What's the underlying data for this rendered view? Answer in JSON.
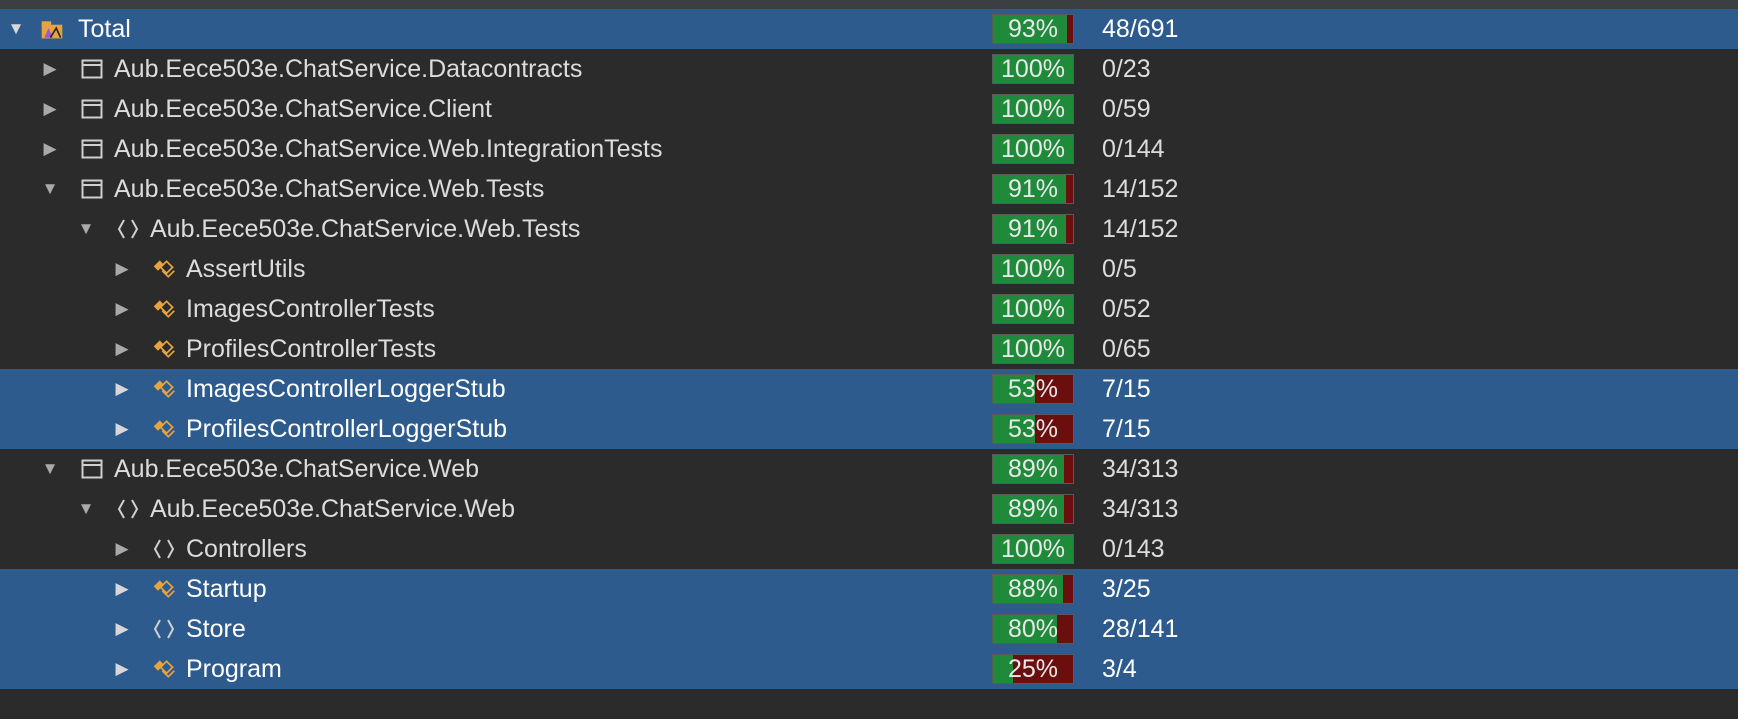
{
  "rows": [
    {
      "label": "Total",
      "arrow": "expanded",
      "icon": "total-icon",
      "pct_label": "93%",
      "fraction": 0.93,
      "count": "48/691",
      "level": 0,
      "selected": true
    },
    {
      "label": "Aub.Eece503e.ChatService.Datacontracts",
      "arrow": "collapsed",
      "icon": "assembly-icon",
      "pct_label": "100%",
      "fraction": 1.0,
      "count": "0/23",
      "level": 1,
      "selected": false
    },
    {
      "label": "Aub.Eece503e.ChatService.Client",
      "arrow": "collapsed",
      "icon": "assembly-icon",
      "pct_label": "100%",
      "fraction": 1.0,
      "count": "0/59",
      "level": 1,
      "selected": false
    },
    {
      "label": "Aub.Eece503e.ChatService.Web.IntegrationTests",
      "arrow": "collapsed",
      "icon": "assembly-icon",
      "pct_label": "100%",
      "fraction": 1.0,
      "count": "0/144",
      "level": 1,
      "selected": false
    },
    {
      "label": "Aub.Eece503e.ChatService.Web.Tests",
      "arrow": "expanded",
      "icon": "assembly-icon",
      "pct_label": "91%",
      "fraction": 0.91,
      "count": "14/152",
      "level": 1,
      "selected": false
    },
    {
      "label": "Aub.Eece503e.ChatService.Web.Tests",
      "arrow": "expanded",
      "icon": "namespace-icon",
      "pct_label": "91%",
      "fraction": 0.91,
      "count": "14/152",
      "level": 2,
      "selected": false
    },
    {
      "label": "AssertUtils",
      "arrow": "collapsed",
      "icon": "class-icon",
      "pct_label": "100%",
      "fraction": 1.0,
      "count": "0/5",
      "level": 3,
      "selected": false
    },
    {
      "label": "ImagesControllerTests",
      "arrow": "collapsed",
      "icon": "class-icon",
      "pct_label": "100%",
      "fraction": 1.0,
      "count": "0/52",
      "level": 3,
      "selected": false
    },
    {
      "label": "ProfilesControllerTests",
      "arrow": "collapsed",
      "icon": "class-icon",
      "pct_label": "100%",
      "fraction": 1.0,
      "count": "0/65",
      "level": 3,
      "selected": false
    },
    {
      "label": "ImagesControllerLoggerStub",
      "arrow": "collapsed",
      "icon": "class-icon",
      "pct_label": "53%",
      "fraction": 0.53,
      "count": "7/15",
      "level": 3,
      "selected": true
    },
    {
      "label": "ProfilesControllerLoggerStub",
      "arrow": "collapsed",
      "icon": "class-icon",
      "pct_label": "53%",
      "fraction": 0.53,
      "count": "7/15",
      "level": 3,
      "selected": true
    },
    {
      "label": "Aub.Eece503e.ChatService.Web",
      "arrow": "expanded",
      "icon": "assembly-icon",
      "pct_label": "89%",
      "fraction": 0.89,
      "count": "34/313",
      "level": 1,
      "selected": false
    },
    {
      "label": "Aub.Eece503e.ChatService.Web",
      "arrow": "expanded",
      "icon": "namespace-icon",
      "pct_label": "89%",
      "fraction": 0.89,
      "count": "34/313",
      "level": 2,
      "selected": false
    },
    {
      "label": "Controllers",
      "arrow": "collapsed",
      "icon": "namespace-icon",
      "pct_label": "100%",
      "fraction": 1.0,
      "count": "0/143",
      "level": 3,
      "selected": false
    },
    {
      "label": "Startup",
      "arrow": "collapsed",
      "icon": "class-icon",
      "pct_label": "88%",
      "fraction": 0.88,
      "count": "3/25",
      "level": 3,
      "selected": true
    },
    {
      "label": "Store",
      "arrow": "collapsed",
      "icon": "namespace-icon",
      "pct_label": "80%",
      "fraction": 0.8,
      "count": "28/141",
      "level": 3,
      "selected": true
    },
    {
      "label": "Program",
      "arrow": "collapsed",
      "icon": "class-icon",
      "pct_label": "25%",
      "fraction": 0.25,
      "count": "3/4",
      "level": 3,
      "selected": true
    }
  ],
  "colors": {
    "covered": "#1f8a3a",
    "uncovered": "#6b0e0e",
    "selection": "#2d5b8e",
    "background": "#2b2b2b"
  }
}
